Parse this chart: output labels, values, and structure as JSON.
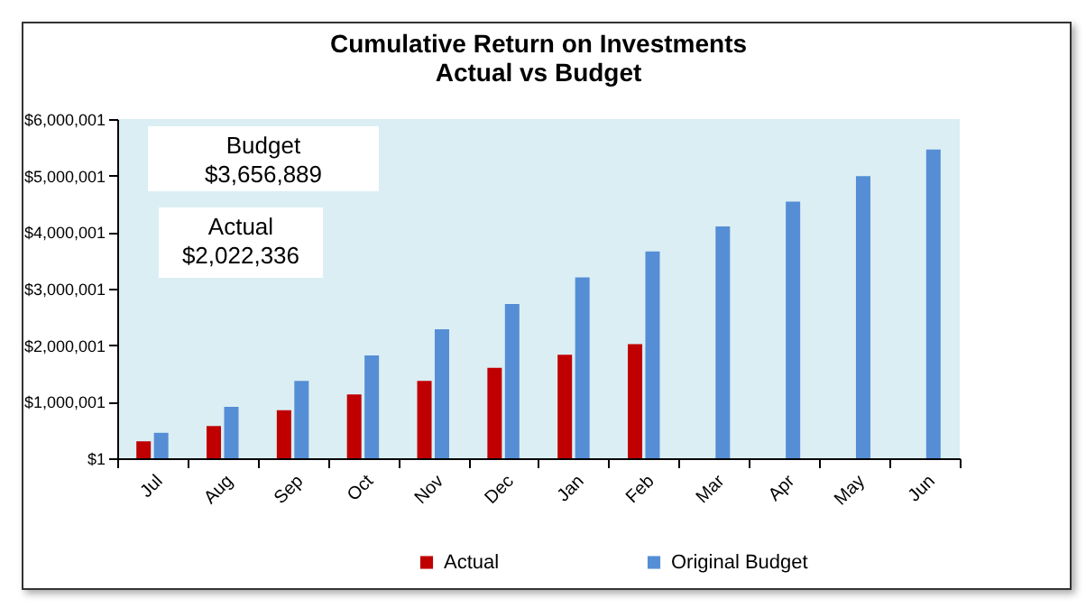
{
  "chart_data": {
    "type": "bar",
    "title": [
      "Cumulative Return on  Investments",
      "Actual vs Budget"
    ],
    "categories": [
      "Jul",
      "Aug",
      "Sep",
      "Oct",
      "Nov",
      "Dec",
      "Jan",
      "Feb",
      "Mar",
      "Apr",
      "May",
      "Jun"
    ],
    "series": [
      {
        "name": "Actual",
        "color": "#c00000",
        "values": [
          300000,
          570000,
          850000,
          1130000,
          1370000,
          1600000,
          1830000,
          2020000,
          null,
          null,
          null,
          null
        ]
      },
      {
        "name": "Original Budget",
        "color": "#558ed5",
        "values": [
          450000,
          910000,
          1370000,
          1820000,
          2280000,
          2730000,
          3200000,
          3660000,
          4100000,
          4540000,
          4990000,
          5460000
        ]
      }
    ],
    "ylim": [
      1,
      6000001
    ],
    "yticks": [
      {
        "value": 1,
        "label": "$1"
      },
      {
        "value": 1000001,
        "label": "$1,000,001"
      },
      {
        "value": 2000001,
        "label": "$2,000,001"
      },
      {
        "value": 3000001,
        "label": "$3,000,001"
      },
      {
        "value": 4000001,
        "label": "$4,000,001"
      },
      {
        "value": 5000001,
        "label": "$5,000,001"
      },
      {
        "value": 6000001,
        "label": "$6,000,001"
      }
    ],
    "annotations": [
      "Budget\n$3,656,889",
      "Actual\n$2,022,336"
    ],
    "legend": "bottom",
    "grid": false
  }
}
